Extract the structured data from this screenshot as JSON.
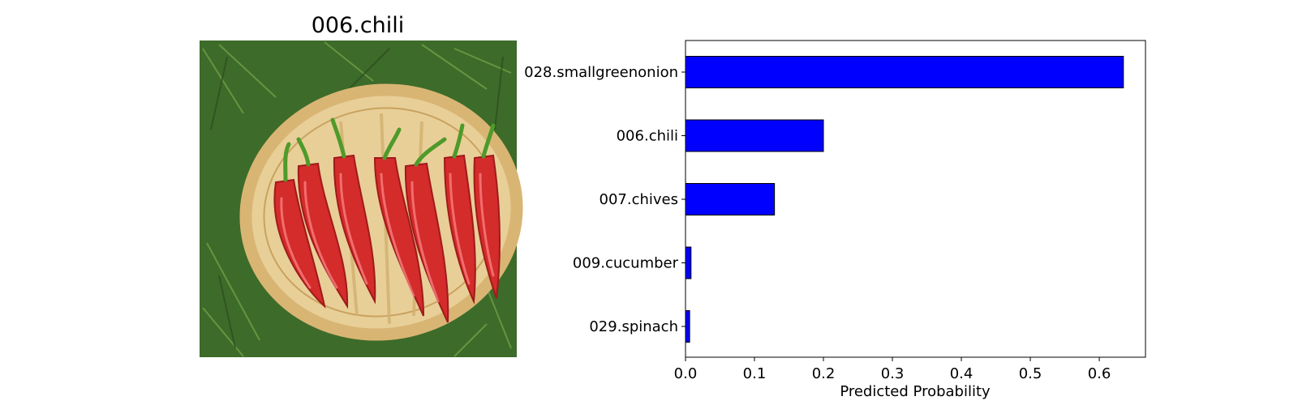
{
  "image_panel": {
    "title": "006.chili",
    "image_subject": "red chili peppers in woven basket on grass"
  },
  "chart_data": {
    "type": "bar",
    "orientation": "horizontal",
    "categories": [
      "028.smallgreenonion",
      "006.chili",
      "007.chives",
      "009.cucumber",
      "029.spinach"
    ],
    "values": [
      0.635,
      0.2,
      0.129,
      0.008,
      0.006
    ],
    "xlabel": "Predicted Probability",
    "ylabel": "",
    "xlim": [
      0,
      0.667
    ],
    "xticks": [
      "0.0",
      "0.1",
      "0.2",
      "0.3",
      "0.4",
      "0.5",
      "0.6"
    ],
    "bar_color": "#0000ff",
    "grid": false,
    "legend": "none"
  }
}
